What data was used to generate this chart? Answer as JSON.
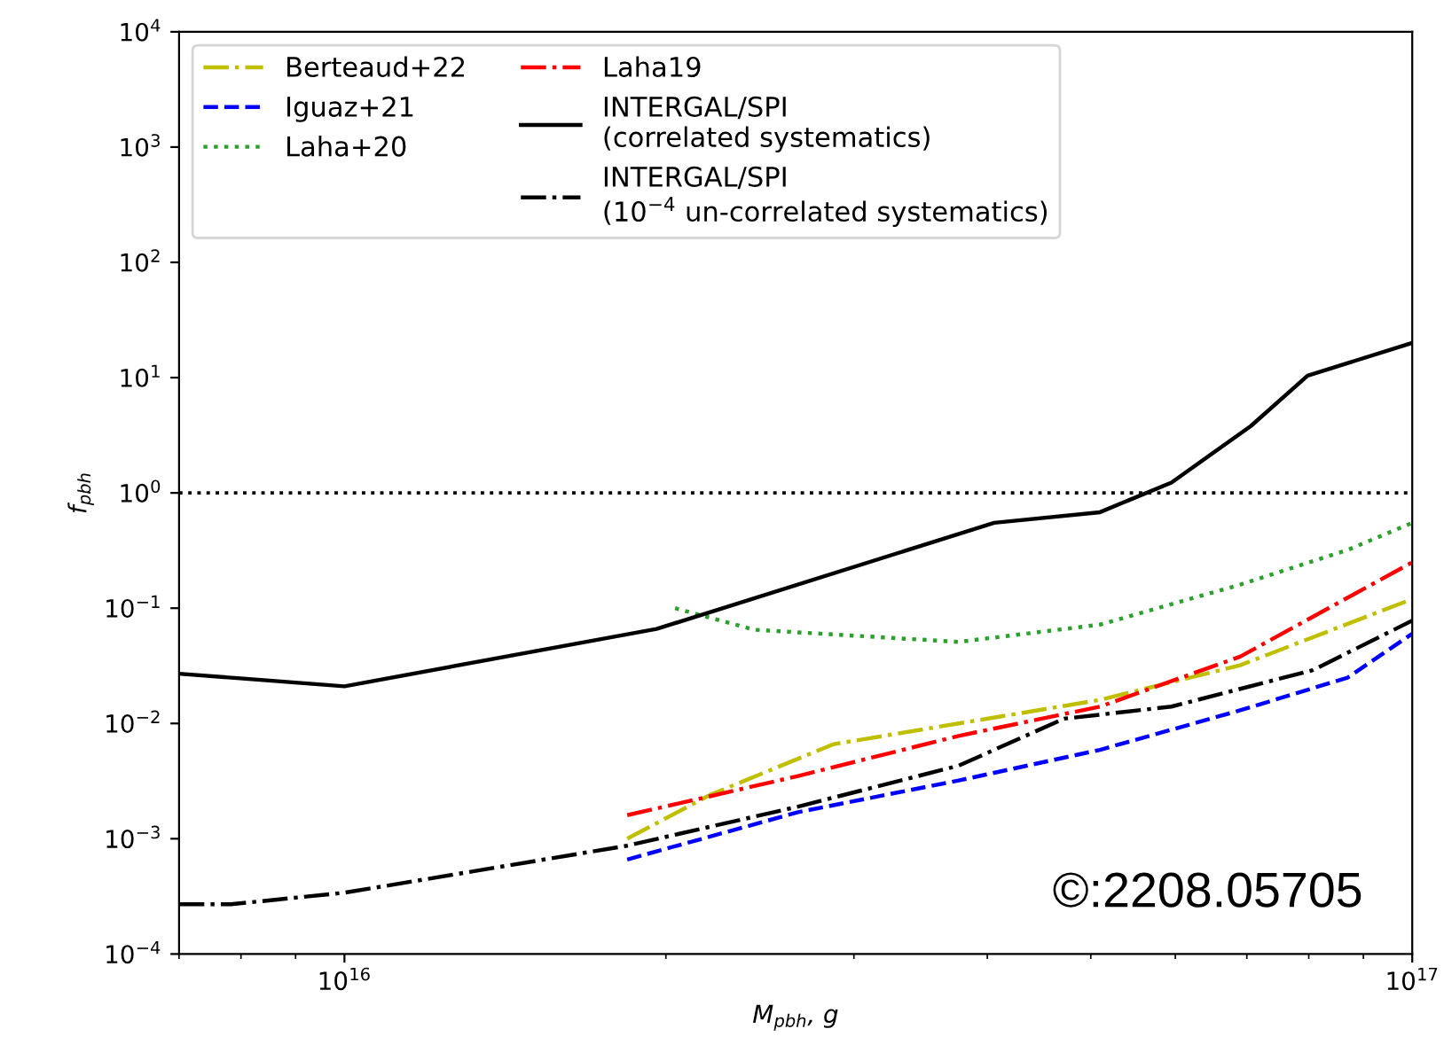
{
  "chart_data": {
    "type": "line",
    "xlabel": "M$_{pbh}$, g",
    "ylabel": "f$_{pbh}$",
    "log": "xy",
    "grid": false,
    "legend": "top left",
    "xlim": [
      7000000000000000.0,
      1e+17
    ],
    "xticks": [
      {
        "value": 1e+16,
        "label": "10$^{16}$"
      },
      {
        "value": 1e+17,
        "label": "10$^{17}$"
      }
    ],
    "ylim": [
      0.0001,
      10000.0
    ],
    "yticks": [
      {
        "value": 0.0001,
        "label": "10$^{−4}$"
      },
      {
        "value": 0.001,
        "label": "10$^{−3}$"
      },
      {
        "value": 0.01,
        "label": "10$^{−2}$"
      },
      {
        "value": 0.1,
        "label": "10$^{−1}$"
      },
      {
        "value": 1,
        "label": "10$^{0}$"
      },
      {
        "value": 10,
        "label": "10$^{1}$"
      },
      {
        "value": 100,
        "label": "10$^{2}$"
      },
      {
        "value": 1000,
        "label": "10$^{3}$"
      },
      {
        "value": 10000,
        "label": "10$^{4}$"
      }
    ],
    "series": [
      {
        "name": "Berteaud+22",
        "color": "#bfbf00",
        "line_style": "dashdot",
        "x": [
          1.84e+16,
          2.2e+16,
          2.87e+16,
          3.76e+16,
          5.1e+16,
          6.9e+16,
          1e+17
        ],
        "values": [
          0.001,
          0.0024,
          0.0066,
          0.01,
          0.016,
          0.032,
          0.12
        ]
      },
      {
        "name": "Iguaz+21",
        "color": "#0000ff",
        "line_style": "dashed",
        "x": [
          1.84e+16,
          2.66e+16,
          3.76e+16,
          5.1e+16,
          6.9e+16,
          8.7e+16,
          1e+17
        ],
        "values": [
          0.00066,
          0.0017,
          0.0032,
          0.0059,
          0.013,
          0.025,
          0.06
        ]
      },
      {
        "name": "Laha+20",
        "color": "#2ca02c",
        "line_style": "dotted",
        "x": [
          2.04e+16,
          2.42e+16,
          3.76e+16,
          5.1e+16,
          6.9e+16,
          8.7e+16,
          1e+17
        ],
        "values": [
          0.1,
          0.065,
          0.051,
          0.072,
          0.16,
          0.32,
          0.55
        ]
      },
      {
        "name": "Laha19",
        "color": "#ff0000",
        "line_style": "dashdot",
        "x": [
          1.84e+16,
          2.66e+16,
          3.76e+16,
          5.1e+16,
          6.9e+16,
          1e+17
        ],
        "values": [
          0.0016,
          0.0035,
          0.0078,
          0.014,
          0.038,
          0.25
        ]
      },
      {
        "name": "INTERGAL/SPI\n(correlated systematics)",
        "color": "#000000",
        "line_style": "solid",
        "x": [
          7000000000000000.0,
          1e+16,
          1.96e+16,
          4.06e+16,
          5.1e+16,
          5.95e+16,
          7.06e+16,
          7.98e+16,
          1e+17
        ],
        "values": [
          0.027,
          0.021,
          0.066,
          0.55,
          0.68,
          1.23,
          3.8,
          10.4,
          20
        ]
      },
      {
        "name": "INTERGAL/SPI\n(10$^{−4}$ un-correlated systematics)",
        "color": "#000000",
        "line_style": "dashdot",
        "x": [
          7000000000000000.0,
          7830000000000000.0,
          1e+16,
          1.84e+16,
          2.66e+16,
          3.76e+16,
          4.72e+16,
          5.95e+16,
          8.07e+16,
          1e+17
        ],
        "values": [
          0.00027,
          0.00027,
          0.00034,
          0.00087,
          0.0019,
          0.0043,
          0.011,
          0.014,
          0.029,
          0.078
        ]
      }
    ],
    "ref_lines": [
      {
        "axis": "y",
        "value": 1,
        "color": "#000000",
        "line_style": "dotted"
      }
    ],
    "annotations": [
      {
        "text": "©:2208.05705"
      }
    ]
  }
}
